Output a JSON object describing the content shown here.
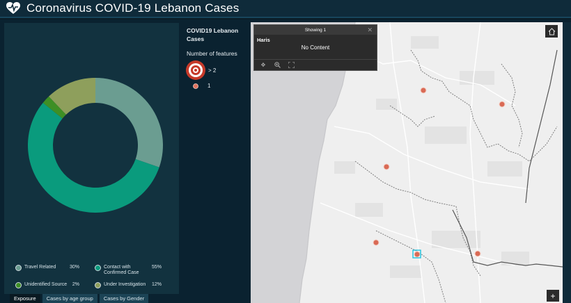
{
  "header": {
    "title": "Coronavirus COVID-19 Lebanon Cases",
    "logo_icon": "heart-pulse-icon"
  },
  "colors": {
    "header_bg": "#0f2b3a",
    "panel_bg": "#12323f",
    "travel_related": "#6b9d91",
    "contact_confirmed": "#0a9b7d",
    "unidentified_source": "#3e8f25",
    "under_investigation": "#8e9f5c",
    "point_marker": "#d96a55"
  },
  "chart_data": {
    "type": "pie",
    "donut": true,
    "slices": [
      {
        "label": "Travel Related",
        "percent": "30%",
        "value": 30
      },
      {
        "label": "Contact with Confirmed Case",
        "percent": "55%",
        "value": 55
      },
      {
        "label": "Unidentified Source",
        "percent": "2%",
        "value": 2
      },
      {
        "label": "Under Investigation",
        "percent": "12%",
        "value": 12
      }
    ]
  },
  "tabs": [
    {
      "label": "Exposure",
      "active": true
    },
    {
      "label": "Cases by age group",
      "active": false
    },
    {
      "label": "Cases by Gender",
      "active": false
    }
  ],
  "legend_panel": {
    "title": "COVID19 Lebanon Cases",
    "subtitle": "Number of features",
    "rows": [
      {
        "label": "> 2",
        "icon": "target-large-icon"
      },
      {
        "label": "1",
        "icon": "dot-small-icon"
      }
    ]
  },
  "popup": {
    "header": "Showing 1",
    "close_icon": "close-icon",
    "feature_name": "Haris",
    "content": "No Content",
    "actions": [
      "pan-icon",
      "zoom-in-icon",
      "zoom-extent-icon"
    ]
  },
  "map": {
    "home_icon": "home-icon",
    "zoom_in_label": "+"
  }
}
